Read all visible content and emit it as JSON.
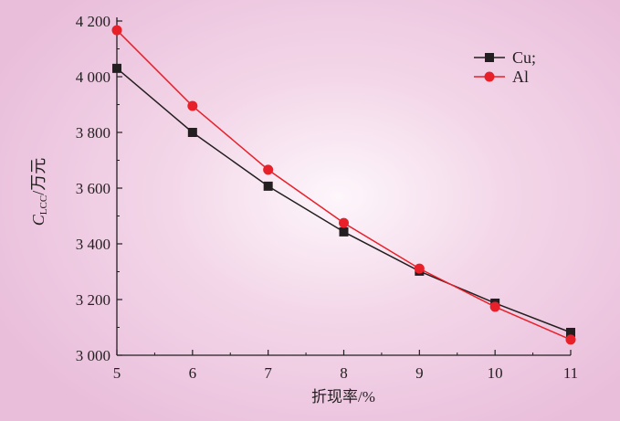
{
  "chart_data": {
    "type": "line",
    "xlabel": "折现率/%",
    "ylabel_main": "C",
    "ylabel_sub": "LCC",
    "ylabel_unit": "/万元",
    "x": [
      5,
      6,
      7,
      8,
      9,
      10,
      11
    ],
    "xlim": [
      5,
      11
    ],
    "ylim": [
      3000,
      4200
    ],
    "x_ticks": [
      "5",
      "6",
      "7",
      "8",
      "9",
      "10",
      "11"
    ],
    "y_ticks": [
      3000,
      3200,
      3400,
      3600,
      3800,
      4000,
      4200
    ],
    "y_tick_labels": [
      "3 000",
      "3 200",
      "3 400",
      "3 600",
      "3 800",
      "4 000",
      "4 200"
    ],
    "grid": false,
    "legend_position": "top-right",
    "series": [
      {
        "name": "Cu;",
        "marker": "square",
        "color": "#231f20",
        "values": [
          4030,
          3800,
          3607,
          3443,
          3302,
          3187,
          3082
        ]
      },
      {
        "name": "Al",
        "marker": "circle",
        "color": "#e8202a",
        "values": [
          4167,
          3895,
          3666,
          3475,
          3311,
          3174,
          3056
        ]
      }
    ]
  }
}
